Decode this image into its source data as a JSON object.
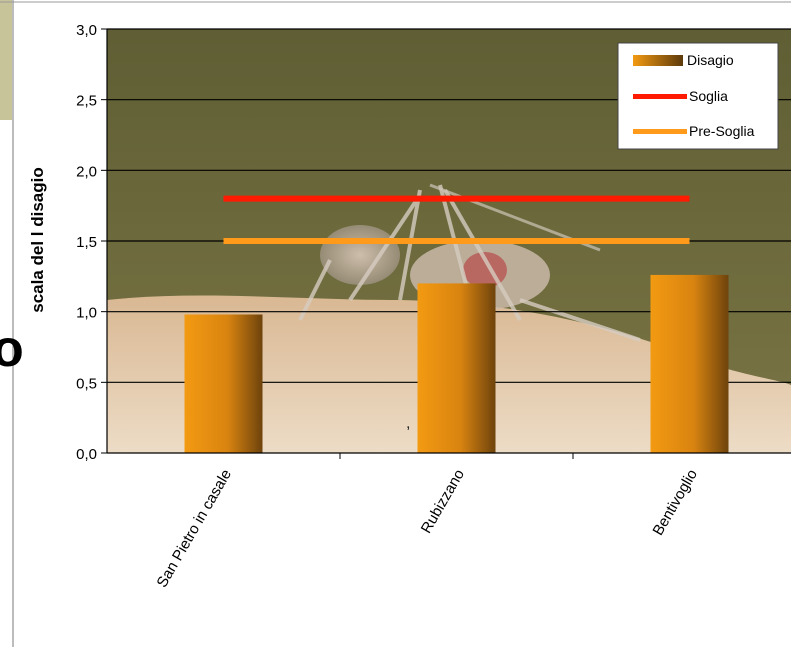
{
  "chart_data": {
    "type": "bar",
    "categories": [
      "San Pietro in casale",
      "Rubizzano",
      "Bentivoglio"
    ],
    "series": [
      {
        "name": "Disagio",
        "values": [
          0.98,
          1.2,
          1.26
        ],
        "color": "#e8900c"
      }
    ],
    "reference_lines": [
      {
        "name": "Soglia",
        "value": 1.8,
        "color": "#ff1a00"
      },
      {
        "name": "Pre-Soglia",
        "value": 1.5,
        "color": "#ff9a1a"
      }
    ],
    "ylabel": "scala del l disagio",
    "ylim": [
      0,
      3.0
    ],
    "yticks": [
      "0,0",
      "0,5",
      "1,0",
      "1,5",
      "2,0",
      "2,5",
      "3,0"
    ],
    "grid": true,
    "legend_position": "top-right",
    "stray_mark": ","
  },
  "background": {
    "description_color_sky": "#6b6a3a",
    "description_color_skin": "#e4c7a4"
  },
  "left_edge_glyph": "o"
}
